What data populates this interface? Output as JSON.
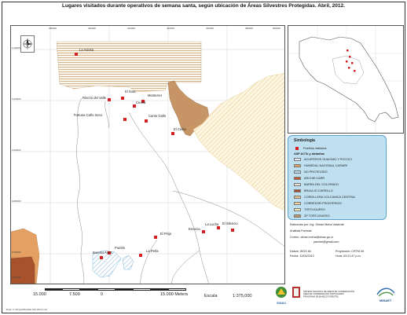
{
  "title": "Lugares visitados durante operativos de semana santa, según ubicación de Áreas Silvestres Protegidas. Abril, 2012.",
  "map_ticks": {
    "top": [
      "380000",
      "400000",
      "420000",
      "440000",
      "460000",
      "480000",
      "500000"
    ],
    "left": [
      "1140000",
      "1120000",
      "1100000",
      "1080000",
      "1060000",
      "1040000"
    ]
  },
  "places": [
    {
      "name": "La Aviesa"
    },
    {
      "name": "Rincón del Valle"
    },
    {
      "name": "El Sota"
    },
    {
      "name": "Monterrer"
    },
    {
      "name": "Cedral"
    },
    {
      "name": "Fortuna Caño Seco"
    },
    {
      "name": "Canto Gallo"
    },
    {
      "name": "El Ceibo"
    },
    {
      "name": "Escocia"
    },
    {
      "name": "La Lucha"
    },
    {
      "name": "El Silencio"
    },
    {
      "name": "El Pinjo"
    },
    {
      "name": "Pueblo"
    },
    {
      "name": "Buenos Aires"
    },
    {
      "name": "La Perla"
    }
  ],
  "legend": {
    "title": "Simbología",
    "points_label": "Pueblos visitados",
    "subtitle": "ASP ACTo y aledañas",
    "items": [
      {
        "label": "ACUIFEROS GUACIMO Y POCOCI",
        "color": "#dfe9f3"
      },
      {
        "label": "HUMEDAL NACIONAL CARIARI",
        "color": "#e3a062"
      },
      {
        "label": "NO PROTEGIDO",
        "color": "#b9d7ee"
      },
      {
        "label": "ARCHIE CARR",
        "color": "#c15a2a"
      },
      {
        "label": "BARRA DEL COLORADO",
        "color": "#e8e2d2"
      },
      {
        "label": "BRAULIO CARRILLO",
        "color": "#a8522c"
      },
      {
        "label": "CORDILLERA VOLCANICA CENTRAL",
        "color": "#e9c58a"
      },
      {
        "label": "CORREDOR FRONTERIZO",
        "color": "#f2d29a"
      },
      {
        "label": "TORTUGUERO",
        "color": "#f5e5b3"
      },
      {
        "label": "ZP TORTUGUERO",
        "color": "#c79565"
      }
    ]
  },
  "info": {
    "elaborado": "Elaborado por: Ing. Olman Mena Valverde",
    "cargo": "Analista Forestal",
    "correo": "Correo: olman.mena@sinac.go.cr",
    "correo2": "yarchel@gmail.com",
    "datum": "Datum: WGS 84",
    "proyeccion": "Proyección: CRTM 05",
    "fecha": "Fecha: 12/04/2012",
    "hora": "Hora: 03:21:47 p.m."
  },
  "scale": {
    "labels": [
      "15.000",
      "7.500",
      "0",
      "15.000 Meters"
    ],
    "text": "Escala",
    "ratio": "1:375,000"
  },
  "logos": {
    "sinac": "SINAC",
    "system_text": "SISTEMA NACIONAL DE ÁREAS DE CONSERVACIÓN ÁREA DE CONSERVACIÓN TORTUGUERO PROGRAMA DE MANEJO FORESTAL",
    "minaet": "MINAET"
  },
  "footer": "Ruta: C:\\Olman\\Plantilla GIS 2012.mxd"
}
